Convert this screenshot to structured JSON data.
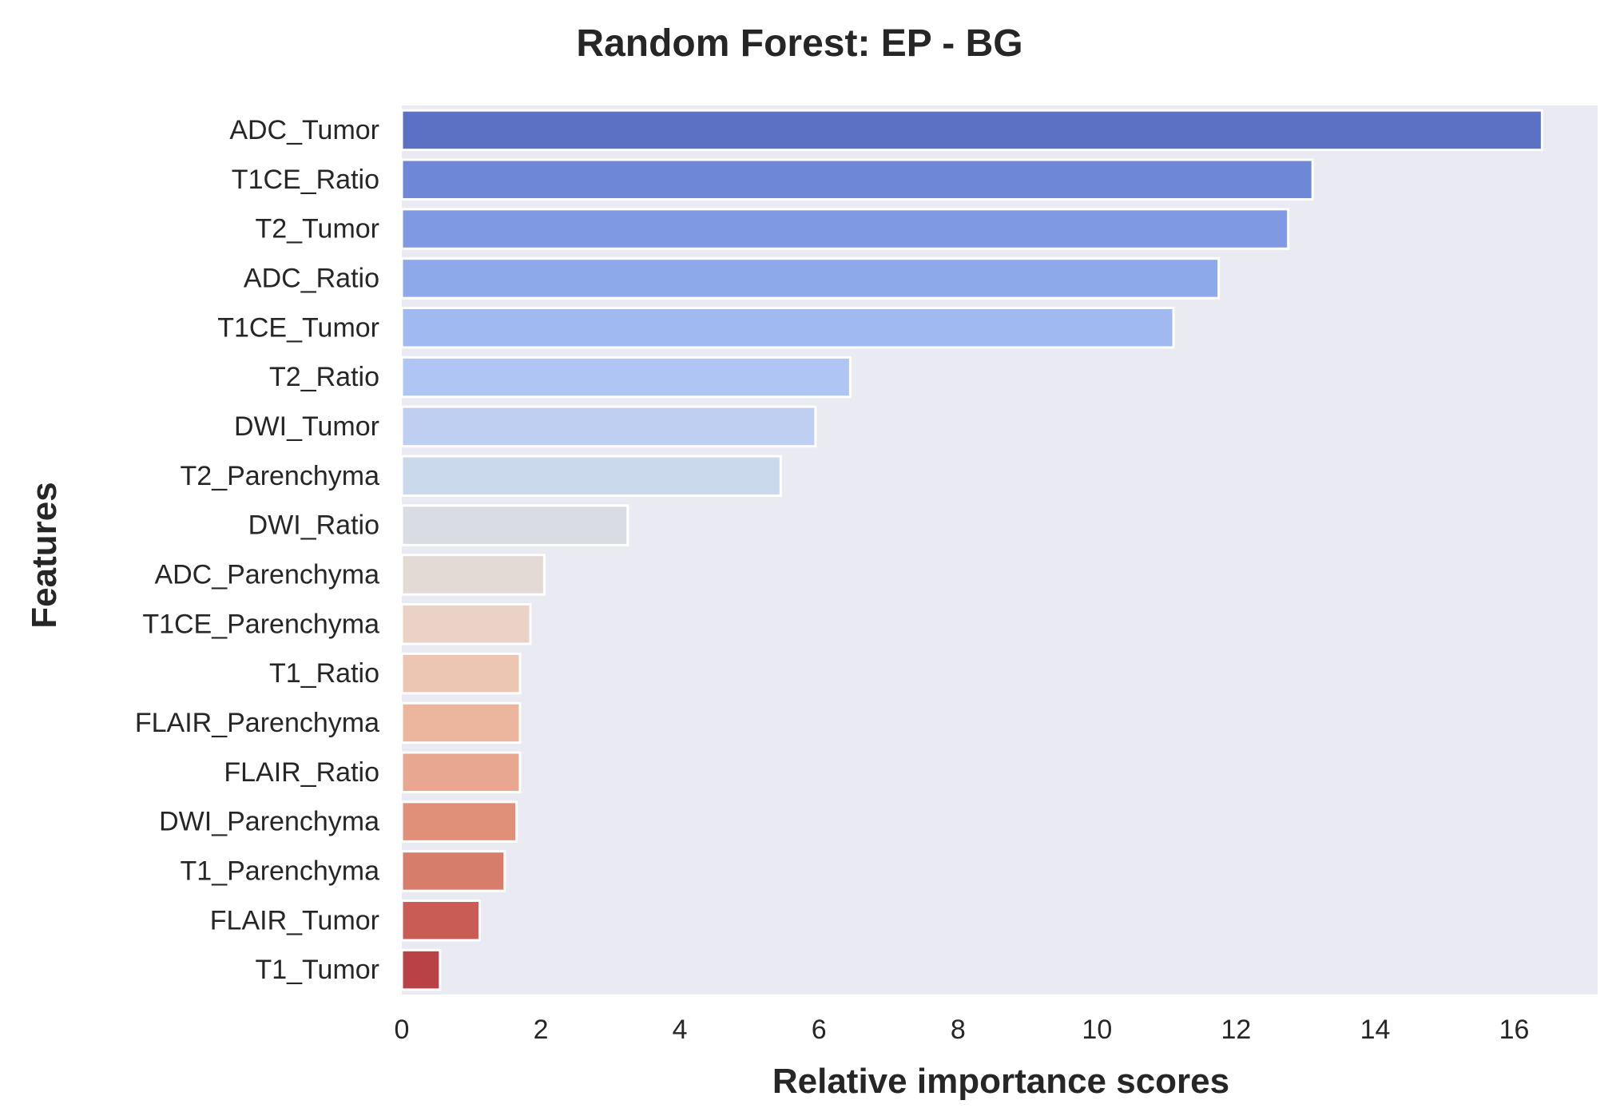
{
  "chart_data": {
    "type": "bar",
    "orientation": "horizontal",
    "title": "Random Forest: EP - BG",
    "xlabel": "Relative importance scores",
    "ylabel": "Features",
    "categories": [
      "ADC_Tumor",
      "T1CE_Ratio",
      "T2_Tumor",
      "ADC_Ratio",
      "T1CE_Tumor",
      "T2_Ratio",
      "DWI_Tumor",
      "T2_Parenchyma",
      "DWI_Ratio",
      "ADC_Parenchyma",
      "T1CE_Parenchyma",
      "T1_Ratio",
      "FLAIR_Parenchyma",
      "FLAIR_Ratio",
      "DWI_Parenchyma",
      "T1_Parenchyma",
      "FLAIR_Tumor",
      "T1_Tumor"
    ],
    "values": [
      16.4,
      13.1,
      12.75,
      11.75,
      11.1,
      6.45,
      5.95,
      5.45,
      3.25,
      2.05,
      1.85,
      1.7,
      1.7,
      1.7,
      1.65,
      1.48,
      1.12,
      0.55
    ],
    "xlim": [
      0,
      17.2
    ],
    "xticks": [
      0,
      2,
      4,
      6,
      8,
      10,
      12,
      14,
      16
    ],
    "grid": false,
    "colors": [
      "#5d71c4",
      "#6e87d6",
      "#7f9ae2",
      "#8ea9e9",
      "#a0baf1",
      "#afc6f5",
      "#becff2",
      "#cbd9ec",
      "#dadce3",
      "#e4dad5",
      "#ebd2c7",
      "#ecc6b3",
      "#ecb69e",
      "#e8a790",
      "#e09079",
      "#d67e6b",
      "#c95d55",
      "#b94247"
    ],
    "plot_background": "#eaeaf2"
  }
}
